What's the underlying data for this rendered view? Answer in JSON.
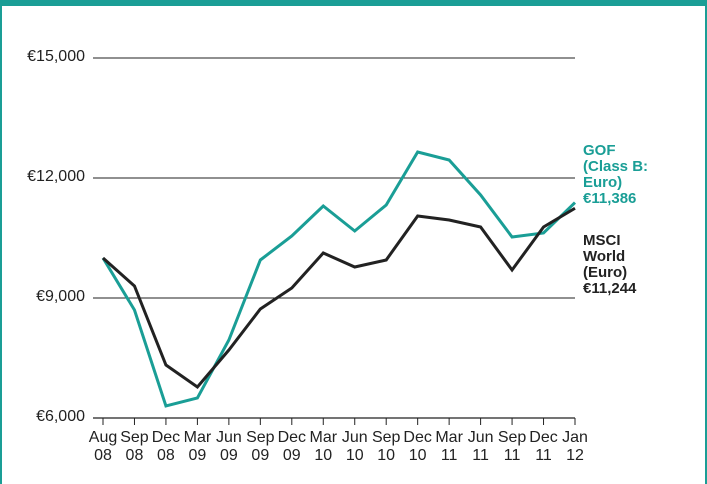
{
  "chart_data": {
    "type": "line",
    "categories": [
      "Aug 08",
      "Sep 08",
      "Dec 08",
      "Mar 09",
      "Jun 09",
      "Sep 09",
      "Dec 09",
      "Mar 10",
      "Jun 10",
      "Sep 10",
      "Dec 10",
      "Mar 11",
      "Jun 11",
      "Sep 11",
      "Dec 11",
      "Jan 12"
    ],
    "series": [
      {
        "name": "GOF (Class B: Euro)",
        "color": "#1a9e96",
        "values": [
          10000,
          8700,
          6300,
          6500,
          7950,
          9950,
          10550,
          11300,
          10675,
          11325,
          12650,
          12450,
          11575,
          10525,
          10625,
          11386
        ],
        "value_labels": [
          null,
          null,
          null,
          null,
          null,
          null,
          null,
          null,
          null,
          null,
          null,
          null,
          null,
          null,
          null,
          "€11,386"
        ]
      },
      {
        "name": "MSCI World (Euro)",
        "color": "#222222",
        "values": [
          10000,
          9300,
          7325,
          6775,
          7700,
          8725,
          9250,
          10125,
          9775,
          9950,
          11050,
          10950,
          10775,
          9700,
          10775,
          11244
        ],
        "value_labels": [
          null,
          null,
          null,
          null,
          null,
          null,
          null,
          null,
          null,
          null,
          null,
          null,
          null,
          null,
          null,
          "€11,244"
        ]
      }
    ],
    "ylim": [
      6000,
      15000
    ],
    "yticks": [
      {
        "value": 6000,
        "label": "€6,000"
      },
      {
        "value": 9000,
        "label": "€9,000"
      },
      {
        "value": 12000,
        "label": "€12,000"
      },
      {
        "value": 15000,
        "label": "€15,000"
      }
    ],
    "grid": true
  }
}
